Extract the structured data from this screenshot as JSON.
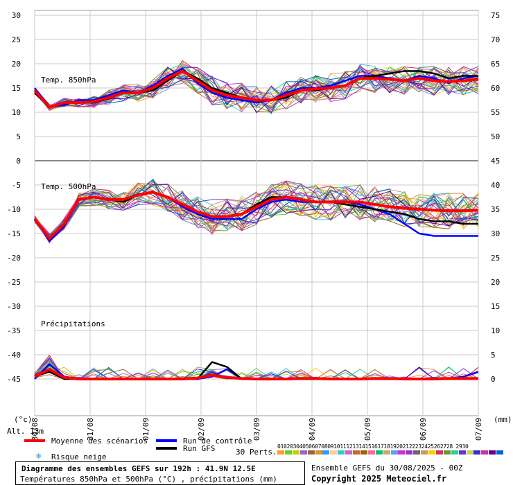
{
  "chart_data": {
    "type": "line",
    "title": "Diagramme des ensembles GEFS sur 192h : 41.9N 12.5E",
    "subtitle": "Températures 850hPa et 500hPa (°C) , précipitations (mm)",
    "left_axis_unit": "(°c)",
    "right_axis_unit": "(mm)",
    "left_ticks": [
      "30",
      "25",
      "20",
      "15",
      "10",
      "5",
      "0",
      "-5",
      "-10",
      "-15",
      "-20",
      "-25",
      "-30",
      "-35",
      "-40",
      "-45"
    ],
    "right_ticks_top": [
      "75",
      "70",
      "65",
      "60",
      "55",
      "50",
      "45"
    ],
    "right_ticks_bottom": [
      "40",
      "35",
      "30",
      "25",
      "20",
      "15",
      "10",
      "5",
      "0"
    ],
    "x_labels": [
      "30/08",
      "31/08",
      "01/09",
      "02/09",
      "03/09",
      "04/09",
      "05/09",
      "06/09",
      "07/09"
    ],
    "panel_labels": [
      "Temp. 850hPa",
      "Temp. 500hPa",
      "Précipitations"
    ],
    "altitude": "Alt. 13m",
    "series": [
      {
        "name": "Moyenne des scénarios (850hPa)",
        "color": "#ff0000",
        "values": [
          14.5,
          11.0,
          12.0,
          12.0,
          12.2,
          13.0,
          14.0,
          14.0,
          15.0,
          17.0,
          18.5,
          16.5,
          14.5,
          13.5,
          13.0,
          12.5,
          12.5,
          13.5,
          14.5,
          14.8,
          15.0,
          15.5,
          17.0,
          17.0,
          16.8,
          16.5,
          17.0,
          16.5,
          16.3,
          16.5,
          16.8
        ]
      },
      {
        "name": "Run de contrôle (850hPa)",
        "color": "#0000ff",
        "values": [
          15.0,
          11.2,
          11.5,
          12.5,
          12.5,
          13.5,
          14.5,
          14.0,
          15.5,
          17.5,
          19.0,
          16.0,
          14.0,
          13.0,
          12.5,
          12.0,
          12.5,
          14.0,
          15.0,
          15.0,
          15.5,
          16.5,
          17.5,
          17.5,
          17.0,
          16.5,
          17.5,
          17.0,
          16.0,
          17.0,
          17.5
        ]
      },
      {
        "name": "Run GFS (850hPa)",
        "color": "#000000",
        "values": [
          14.0,
          11.0,
          12.0,
          12.0,
          12.0,
          12.8,
          14.0,
          14.0,
          14.5,
          16.5,
          18.5,
          17.0,
          15.0,
          14.0,
          13.0,
          12.5,
          12.5,
          13.0,
          14.5,
          14.5,
          15.0,
          15.5,
          17.0,
          17.5,
          18.0,
          18.5,
          18.5,
          18.0,
          17.0,
          17.5,
          17.5
        ]
      },
      {
        "name": "Moyenne des scénarios (500hPa)",
        "color": "#ff0000",
        "values": [
          -12.0,
          -16.0,
          -13.0,
          -8.0,
          -7.5,
          -8.0,
          -8.0,
          -7.0,
          -6.5,
          -7.5,
          -9.0,
          -10.5,
          -11.5,
          -11.5,
          -11.0,
          -9.5,
          -8.0,
          -7.5,
          -8.0,
          -8.5,
          -8.5,
          -8.5,
          -8.5,
          -9.0,
          -9.5,
          -9.8,
          -10.0,
          -10.2,
          -10.3,
          -10.3,
          -10.2
        ]
      },
      {
        "name": "Run de contrôle (500hPa)",
        "color": "#0000ff",
        "values": [
          -12.0,
          -16.5,
          -13.5,
          -8.0,
          -7.5,
          -8.0,
          -8.0,
          -7.0,
          -6.5,
          -7.5,
          -9.5,
          -11.0,
          -12.0,
          -12.0,
          -12.0,
          -10.0,
          -8.5,
          -8.0,
          -8.5,
          -8.5,
          -8.5,
          -8.5,
          -9.0,
          -10.0,
          -11.0,
          -13.0,
          -15.0,
          -15.5,
          -15.5,
          -15.5,
          -15.5
        ]
      },
      {
        "name": "Run GFS (500hPa)",
        "color": "#000000",
        "values": [
          -12.0,
          -16.0,
          -13.0,
          -8.0,
          -7.5,
          -8.0,
          -8.5,
          -7.0,
          -6.5,
          -7.5,
          -9.0,
          -10.5,
          -11.5,
          -11.5,
          -11.0,
          -9.0,
          -7.5,
          -7.5,
          -8.0,
          -8.5,
          -8.5,
          -9.0,
          -9.5,
          -10.0,
          -10.5,
          -11.0,
          -12.0,
          -12.5,
          -12.5,
          -13.0,
          -13.0
        ]
      },
      {
        "name": "Moyenne des scénarios (précipitations)",
        "color": "#ff0000",
        "values": [
          0.5,
          2.0,
          0.3,
          0.0,
          0.0,
          0.0,
          0.0,
          0.0,
          0.0,
          0.0,
          0.0,
          0.2,
          0.8,
          0.3,
          0.1,
          0.0,
          0.0,
          0.0,
          0.1,
          0.1,
          0.0,
          0.0,
          0.0,
          0.1,
          0.1,
          0.0,
          0.0,
          0.0,
          0.1,
          0.1,
          0.1
        ]
      },
      {
        "name": "Run de contrôle (précipitations)",
        "color": "#0000ff",
        "values": [
          0.0,
          3.0,
          0.5,
          0.0,
          0.0,
          0.0,
          0.0,
          0.0,
          0.0,
          0.0,
          0.0,
          0.0,
          0.5,
          2.0,
          0.0,
          0.0,
          0.0,
          0.0,
          0.0,
          0.0,
          0.0,
          0.0,
          0.0,
          0.0,
          0.0,
          0.0,
          0.0,
          0.0,
          0.0,
          0.5,
          1.5
        ]
      },
      {
        "name": "Run GFS (précipitations)",
        "color": "#000000",
        "values": [
          0.5,
          1.5,
          0.0,
          0.0,
          0.0,
          0.0,
          0.0,
          0.0,
          0.0,
          0.0,
          0.0,
          0.0,
          3.5,
          2.5,
          0.0,
          0.0,
          0.0,
          0.0,
          0.0,
          0.0,
          0.0,
          0.0,
          0.0,
          0.0,
          0.0,
          0.0,
          0.0,
          0.0,
          0.0,
          0.0,
          0.0
        ]
      }
    ],
    "legend": [
      {
        "label": "Moyenne des scénarios",
        "color": "#ff0000"
      },
      {
        "label": "Run de contrôle",
        "color": "#0000ff"
      },
      {
        "label": "Run GFS",
        "color": "#000000"
      },
      {
        "label": "Risque neige",
        "color": "#3399dd"
      }
    ],
    "perturbations_label": "30 Perts.",
    "perturbation_numbers": "01020304050607080910111213141516171819202122232425262728 2930",
    "perturbation_colors": [
      "#ff9933",
      "#66cc33",
      "#cccc00",
      "#9966cc",
      "#996633",
      "#cc9933",
      "#3399ff",
      "#ffcc99",
      "#33cccc",
      "#cc66cc",
      "#cc6633",
      "#996600",
      "#ff6699",
      "#00cc66",
      "#ccaa66",
      "#6699ff",
      "#cc33cc",
      "#9933cc",
      "#666666",
      "#cc9966",
      "#ffcc00",
      "#cc3366",
      "#669933",
      "#33cc99",
      "#6633cc",
      "#cccc66",
      "#3333cc",
      "#cc3399",
      "#660099",
      "#0066cc"
    ],
    "run_info": "Ensemble GEFS du 30/08/2025 - 00Z",
    "copyright": "Copyright 2025 Meteociel.fr"
  }
}
